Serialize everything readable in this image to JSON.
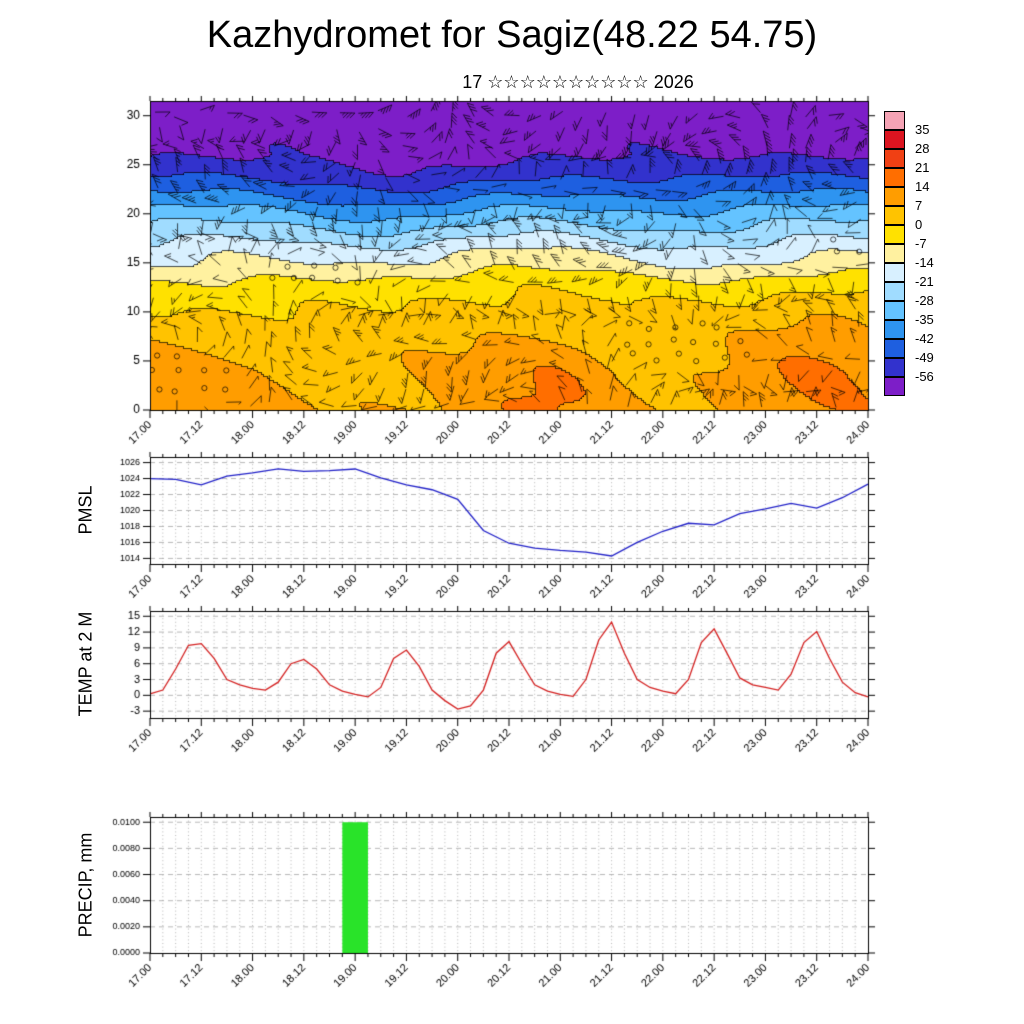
{
  "header": {
    "title": "Kazhydromet for Sagiz(48.22 54.75)",
    "subtitle_day": "17",
    "subtitle_stars": "☆☆☆☆☆☆☆☆☆☆",
    "subtitle_year": "2026"
  },
  "x_axis": {
    "range_days": [
      17,
      24
    ],
    "label_every_hours": 12,
    "minor_tick_hours": 3,
    "labels": [
      "17.00",
      "17.12",
      "18.00",
      "18.12",
      "19.00",
      "19.12",
      "20.00",
      "20.12",
      "21.00",
      "21.12",
      "22.00",
      "22.12",
      "23.00",
      "23.12",
      "24.00"
    ]
  },
  "chart_data": [
    {
      "type": "heatmap",
      "name": "upper-air-temperature-wind-section",
      "description": "Time-height section: shaded temperature (°C) with wind barbs and contour lines",
      "ylim": [
        0,
        31.5
      ],
      "y_ticks": [
        0,
        5,
        10,
        15,
        20,
        25,
        30
      ],
      "colorbar_ticks": [
        35,
        28,
        21,
        14,
        7,
        0,
        -7,
        -14,
        -21,
        -28,
        -35,
        -42,
        -49,
        -56
      ],
      "colorbar_colors": [
        "#f5a3b5",
        "#dc1420",
        "#f04014",
        "#ff6e00",
        "#ff9d00",
        "#ffc300",
        "#ffe100",
        "#fff1a0",
        "#d8f0ff",
        "#a0dcff",
        "#64c3ff",
        "#2e94f0",
        "#1e5fe0",
        "#3232cd",
        "#7d1ec8"
      ],
      "temperature_profile": {
        "heights": [
          0,
          4,
          8,
          11,
          13,
          14.5,
          16,
          18,
          20,
          22,
          24,
          26,
          28,
          31.5
        ],
        "temps": [
          9,
          7.5,
          4,
          0,
          -5,
          -12,
          -17,
          -25,
          -33,
          -42,
          -50,
          -56.5,
          -59,
          -61
        ]
      },
      "anomalies": [
        {
          "x": 21.0,
          "y": 3,
          "sx": 0.35,
          "sy": 30,
          "amp": 5
        },
        {
          "x": 23.6,
          "y": 6,
          "sx": 0.5,
          "sy": 40,
          "amp": 6
        },
        {
          "x": 19.6,
          "y": 23,
          "sx": 0.8,
          "sy": 18,
          "amp": -6
        },
        {
          "x": 17.8,
          "y": 12,
          "sx": 1.2,
          "sy": 9,
          "amp": -3
        },
        {
          "x": 20.3,
          "y": 15,
          "sx": 1.0,
          "sy": 10,
          "amp": 4
        }
      ],
      "wind_barbs": {
        "grid_dx": 0.22,
        "grid_dy": 1.55,
        "color": "#000000"
      }
    },
    {
      "type": "line",
      "name": "pmsl",
      "ylabel": "PMSL",
      "color": "#2020c8",
      "ylim": [
        1013.3,
        1026.7
      ],
      "y_ticks": [
        1014,
        1016,
        1018,
        1020,
        1022,
        1024,
        1026
      ],
      "x_start": 17.0,
      "x_step_days": 0.25,
      "values": [
        1024.0,
        1023.9,
        1023.2,
        1024.3,
        1024.7,
        1025.2,
        1024.9,
        1025.0,
        1025.2,
        1024.1,
        1023.2,
        1022.6,
        1021.4,
        1017.5,
        1015.9,
        1015.3,
        1015.0,
        1014.8,
        1014.3,
        1016.0,
        1017.4,
        1018.4,
        1018.2,
        1019.6,
        1020.2,
        1020.9,
        1020.3,
        1021.6,
        1023.3
      ]
    },
    {
      "type": "line",
      "name": "temp-2m",
      "ylabel": "TEMP at 2 M",
      "color": "#d42020",
      "ylim": [
        -4.3,
        16
      ],
      "y_ticks": [
        -3,
        0,
        3,
        6,
        9,
        12,
        15
      ],
      "x_start": 17.0,
      "x_step_days": 0.125,
      "values": [
        0.3,
        1.0,
        5.0,
        9.5,
        9.8,
        7.0,
        3.0,
        2.0,
        1.3,
        1.0,
        2.5,
        6.0,
        6.8,
        5.0,
        2.0,
        0.8,
        0.2,
        -0.3,
        1.5,
        7.0,
        8.6,
        5.5,
        1.0,
        -1.0,
        -2.6,
        -2.0,
        1.0,
        8.0,
        10.2,
        6.0,
        2.0,
        0.8,
        0.2,
        -0.2,
        3.0,
        10.5,
        13.9,
        8.0,
        3.0,
        1.5,
        0.8,
        0.3,
        3.0,
        10.0,
        12.6,
        8.0,
        3.3,
        2.0,
        1.5,
        1.0,
        4.0,
        10.0,
        12.1,
        7.0,
        2.5,
        0.5,
        -0.3
      ]
    },
    {
      "type": "bar",
      "name": "precip",
      "ylabel": "PRECIP, mm",
      "bar_color": "#29e329",
      "ylim": [
        0,
        0.0104
      ],
      "y_ticks": [
        0.0,
        0.002,
        0.004,
        0.006,
        0.008,
        0.01
      ],
      "y_tick_labels": [
        "0.0000",
        "0.0020",
        "0.0040",
        "0.0060",
        "0.0080",
        "0.0100"
      ],
      "bars": [
        {
          "x_start": 18.875,
          "x_end": 19.125,
          "value": 0.01
        }
      ]
    }
  ]
}
